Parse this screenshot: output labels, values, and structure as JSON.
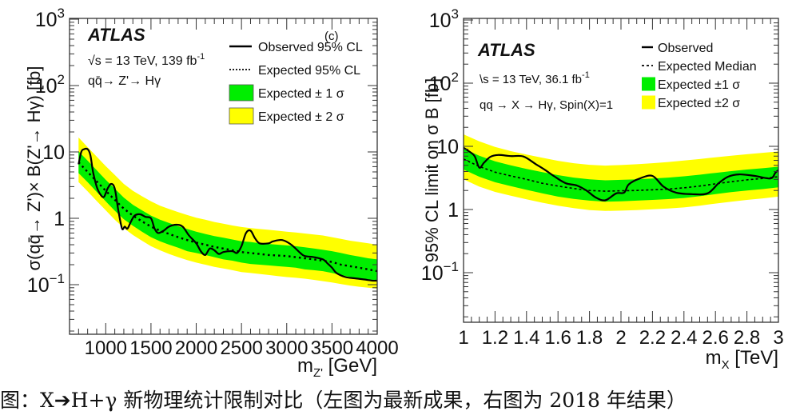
{
  "caption": "图：X➔H+γ 新物理统计限制对比（左图为最新成果，右图为 2018 年结果）",
  "colors": {
    "band2": "#ffff00",
    "band1": "#00ee00",
    "line": "#000000",
    "axis": "#333333"
  },
  "chart_data": [
    {
      "type": "line",
      "panel": "left",
      "title": "",
      "experiment": "ATLAS",
      "panel_label": "(c)",
      "energy_lumi": "√s = 13 TeV, 139 fb",
      "lumi_exponent": "-1",
      "process": "qq̄→ Z'→ Hγ",
      "xlabel": "m",
      "xlabel_sub": "Z'",
      "xlabel_unit": " [GeV]",
      "ylabel": "σ(qq̄→ Z')× B(Z'→ Hγ) [fb]",
      "xlim": [
        600,
        4000
      ],
      "ylim": [
        0.0178,
        1000
      ],
      "yscale": "log",
      "xticks": [
        1000,
        1500,
        2000,
        2500,
        3000,
        3500,
        4000
      ],
      "xtick_labels": [
        "1000",
        "1500",
        "2000",
        "2500",
        "3000",
        "3500",
        "4000"
      ],
      "yticks": [
        0.1,
        1,
        10,
        100,
        1000
      ],
      "ytick_labels": [
        {
          "base": "10",
          "exp": "−1"
        },
        {
          "base": "1",
          "exp": ""
        },
        {
          "base": "10",
          "exp": ""
        },
        {
          "base": "10",
          "exp": "2"
        },
        {
          "base": "10",
          "exp": "3"
        }
      ],
      "legend": [
        {
          "label": "Observed 95% CL",
          "style": "solid"
        },
        {
          "label": "Expected 95% CL",
          "style": "dotted"
        },
        {
          "label": "Expected ± 1 σ",
          "style": "band1"
        },
        {
          "label": "Expected ± 2 σ",
          "style": "band2"
        }
      ],
      "legend_position": "top-right",
      "x": [
        700,
        800,
        900,
        1000,
        1100,
        1200,
        1300,
        1400,
        1500,
        1600,
        1700,
        1800,
        1900,
        2000,
        2100,
        2200,
        2300,
        2400,
        2500,
        2600,
        2700,
        2800,
        2900,
        3000,
        3100,
        3200,
        3300,
        3400,
        3500,
        3600,
        3700,
        3800,
        3900,
        4000
      ],
      "expected": [
        7.0,
        5.0,
        3.6,
        2.6,
        1.9,
        1.4,
        1.1,
        0.9,
        0.75,
        0.65,
        0.58,
        0.52,
        0.47,
        0.43,
        0.4,
        0.37,
        0.35,
        0.33,
        0.31,
        0.3,
        0.29,
        0.28,
        0.275,
        0.27,
        0.26,
        0.25,
        0.24,
        0.23,
        0.22,
        0.2,
        0.19,
        0.18,
        0.17,
        0.16
      ],
      "band1_low": [
        4.8,
        3.5,
        2.5,
        1.8,
        1.3,
        0.97,
        0.77,
        0.63,
        0.52,
        0.45,
        0.4,
        0.36,
        0.32,
        0.3,
        0.28,
        0.26,
        0.24,
        0.23,
        0.215,
        0.205,
        0.2,
        0.195,
        0.19,
        0.185,
        0.18,
        0.17,
        0.165,
        0.16,
        0.15,
        0.14,
        0.13,
        0.125,
        0.12,
        0.115
      ],
      "band1_high": [
        10.2,
        7.4,
        5.3,
        3.8,
        2.8,
        2.05,
        1.6,
        1.32,
        1.1,
        0.95,
        0.85,
        0.76,
        0.69,
        0.63,
        0.58,
        0.54,
        0.51,
        0.48,
        0.45,
        0.44,
        0.42,
        0.41,
        0.4,
        0.39,
        0.38,
        0.365,
        0.35,
        0.335,
        0.32,
        0.3,
        0.28,
        0.265,
        0.25,
        0.24
      ],
      "band2_low": [
        3.5,
        2.55,
        1.82,
        1.32,
        0.95,
        0.71,
        0.56,
        0.46,
        0.38,
        0.33,
        0.29,
        0.26,
        0.235,
        0.215,
        0.2,
        0.185,
        0.175,
        0.165,
        0.155,
        0.15,
        0.145,
        0.14,
        0.135,
        0.13,
        0.127,
        0.123,
        0.118,
        0.113,
        0.108,
        0.102,
        0.097,
        0.093,
        0.09,
        0.087
      ],
      "band2_high": [
        16.5,
        11.8,
        8.5,
        6.1,
        4.5,
        3.3,
        2.6,
        2.15,
        1.8,
        1.55,
        1.38,
        1.24,
        1.12,
        1.02,
        0.95,
        0.88,
        0.83,
        0.78,
        0.74,
        0.71,
        0.69,
        0.67,
        0.65,
        0.63,
        0.61,
        0.59,
        0.57,
        0.55,
        0.52,
        0.49,
        0.46,
        0.44,
        0.42,
        0.4
      ],
      "observed_x": [
        700,
        730,
        760,
        800,
        830,
        860,
        900,
        940,
        980,
        1020,
        1060,
        1100,
        1140,
        1180,
        1210,
        1240,
        1280,
        1320,
        1380,
        1440,
        1500,
        1540,
        1580,
        1640,
        1700,
        1780,
        1850,
        1920,
        2000,
        2050,
        2100,
        2150,
        2200,
        2250,
        2300,
        2400,
        2450,
        2500,
        2550,
        2600,
        2650,
        2700,
        2800,
        2850,
        2950,
        3050,
        3150,
        3200,
        3300,
        3400,
        3450,
        3500,
        3550,
        3650,
        3750,
        3850,
        3950,
        4000
      ],
      "observed": [
        6.5,
        10.0,
        11.0,
        11.0,
        9.0,
        5.0,
        3.0,
        2.3,
        2.1,
        2.8,
        3.3,
        2.8,
        1.3,
        0.7,
        0.75,
        0.7,
        0.9,
        1.1,
        1.15,
        1.05,
        1.0,
        0.7,
        0.6,
        0.65,
        0.75,
        0.8,
        0.75,
        0.55,
        0.42,
        0.32,
        0.28,
        0.35,
        0.33,
        0.29,
        0.31,
        0.32,
        0.3,
        0.38,
        0.6,
        0.65,
        0.5,
        0.42,
        0.42,
        0.45,
        0.47,
        0.4,
        0.3,
        0.27,
        0.26,
        0.24,
        0.21,
        0.18,
        0.15,
        0.13,
        0.125,
        0.12,
        0.115,
        0.115
      ]
    },
    {
      "type": "line",
      "panel": "right",
      "title": "",
      "experiment": "ATLAS",
      "energy_lumi": "\\s = 13 TeV, 36.1 fb",
      "lumi_exponent": "-1",
      "process": "qq → X → Hγ, Spin(X)=1",
      "xlabel": "m",
      "xlabel_sub": "X",
      "xlabel_unit": " [TeV]",
      "ylabel": "95% CL limit on σ B [fb]",
      "xlim": [
        1,
        3
      ],
      "ylim": [
        0.0178,
        1000
      ],
      "yscale": "log",
      "xticks": [
        1,
        1.2,
        1.4,
        1.6,
        1.8,
        2,
        2.2,
        2.4,
        2.6,
        2.8,
        3
      ],
      "xtick_labels": [
        "1",
        "1.2",
        "1.4",
        "1.6",
        "1.8",
        "2",
        "2.2",
        "2.4",
        "2.6",
        "2.8",
        "3"
      ],
      "yticks": [
        0.1,
        1,
        10,
        100,
        1000
      ],
      "ytick_labels": [
        {
          "base": "10",
          "exp": "−1"
        },
        {
          "base": "1",
          "exp": ""
        },
        {
          "base": "10",
          "exp": ""
        },
        {
          "base": "10",
          "exp": "2"
        },
        {
          "base": "10",
          "exp": "3"
        }
      ],
      "legend": [
        {
          "label": "Observed",
          "style": "solid"
        },
        {
          "label": "Expected Median",
          "style": "dashed"
        },
        {
          "label": "Expected ±1 σ",
          "style": "band1"
        },
        {
          "label": "Expected ±2 σ",
          "style": "band2"
        }
      ],
      "legend_position": "top-right",
      "x": [
        1.0,
        1.1,
        1.2,
        1.3,
        1.4,
        1.5,
        1.6,
        1.7,
        1.8,
        1.9,
        2.0,
        2.1,
        2.2,
        2.3,
        2.4,
        2.5,
        2.6,
        2.7,
        2.8,
        2.9,
        3.0
      ],
      "expected": [
        6.3,
        4.8,
        3.9,
        3.4,
        3.0,
        2.6,
        2.35,
        2.15,
        2.0,
        1.95,
        1.98,
        2.0,
        2.05,
        2.1,
        2.2,
        2.35,
        2.55,
        2.75,
        2.95,
        3.1,
        3.3
      ],
      "band1_low": [
        4.3,
        3.3,
        2.7,
        2.35,
        2.05,
        1.8,
        1.6,
        1.47,
        1.38,
        1.33,
        1.35,
        1.38,
        1.42,
        1.46,
        1.52,
        1.62,
        1.75,
        1.88,
        2.0,
        2.1,
        2.25
      ],
      "band1_high": [
        9.2,
        7.1,
        5.8,
        5.0,
        4.4,
        3.9,
        3.5,
        3.2,
        3.0,
        2.9,
        2.95,
        3.0,
        3.1,
        3.2,
        3.35,
        3.55,
        3.8,
        4.05,
        4.3,
        4.5,
        4.75
      ],
      "band2_low": [
        3.0,
        2.3,
        1.9,
        1.65,
        1.45,
        1.28,
        1.15,
        1.05,
        0.98,
        0.95,
        0.96,
        0.98,
        1.01,
        1.04,
        1.08,
        1.15,
        1.24,
        1.33,
        1.42,
        1.5,
        1.6
      ],
      "band2_high": [
        15.5,
        12.0,
        9.8,
        8.4,
        7.4,
        6.6,
        5.9,
        5.4,
        5.1,
        4.95,
        5.05,
        5.2,
        5.4,
        5.65,
        5.95,
        6.3,
        6.7,
        7.1,
        7.5,
        7.9,
        8.3
      ],
      "observed_x": [
        1.0,
        1.03,
        1.07,
        1.1,
        1.13,
        1.17,
        1.22,
        1.3,
        1.38,
        1.46,
        1.52,
        1.58,
        1.65,
        1.72,
        1.78,
        1.84,
        1.9,
        1.97,
        2.02,
        2.05,
        2.12,
        2.2,
        2.27,
        2.35,
        2.45,
        2.55,
        2.62,
        2.68,
        2.75,
        2.85,
        2.95,
        2.98,
        3.0
      ],
      "observed": [
        9.5,
        8.5,
        7.0,
        4.6,
        5.5,
        6.8,
        7.3,
        7.0,
        6.9,
        5.2,
        4.2,
        3.3,
        2.6,
        2.4,
        2.0,
        1.55,
        1.4,
        1.8,
        1.85,
        2.5,
        3.1,
        3.4,
        2.3,
        1.85,
        1.75,
        1.8,
        2.6,
        3.3,
        3.6,
        3.4,
        3.1,
        3.8,
        4.2
      ]
    }
  ]
}
